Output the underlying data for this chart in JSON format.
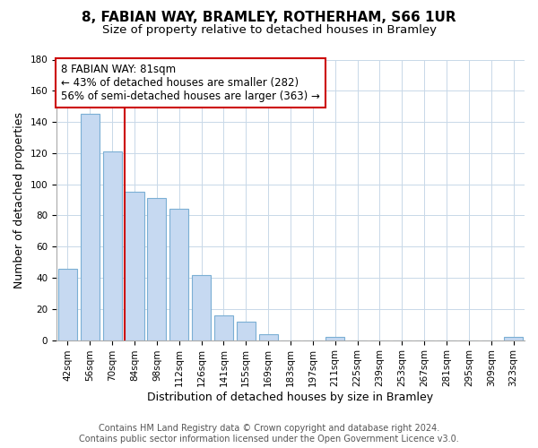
{
  "title": "8, FABIAN WAY, BRAMLEY, ROTHERHAM, S66 1UR",
  "subtitle": "Size of property relative to detached houses in Bramley",
  "xlabel": "Distribution of detached houses by size in Bramley",
  "ylabel": "Number of detached properties",
  "bar_labels": [
    "42sqm",
    "56sqm",
    "70sqm",
    "84sqm",
    "98sqm",
    "112sqm",
    "126sqm",
    "141sqm",
    "155sqm",
    "169sqm",
    "183sqm",
    "197sqm",
    "211sqm",
    "225sqm",
    "239sqm",
    "253sqm",
    "267sqm",
    "281sqm",
    "295sqm",
    "309sqm",
    "323sqm"
  ],
  "bar_values": [
    46,
    145,
    121,
    95,
    91,
    84,
    42,
    16,
    12,
    4,
    0,
    0,
    2,
    0,
    0,
    0,
    0,
    0,
    0,
    0,
    2
  ],
  "bar_color": "#c6d9f1",
  "bar_edge_color": "#7bafd4",
  "redline_x": 2.57,
  "annotation_title": "8 FABIAN WAY: 81sqm",
  "annotation_line1": "← 43% of detached houses are smaller (282)",
  "annotation_line2": "56% of semi-detached houses are larger (363) →",
  "annotation_box_color": "#ffffff",
  "annotation_box_edge": "#cc0000",
  "redline_color": "#cc0000",
  "ylim": [
    0,
    180
  ],
  "yticks": [
    0,
    20,
    40,
    60,
    80,
    100,
    120,
    140,
    160,
    180
  ],
  "footer_line1": "Contains HM Land Registry data © Crown copyright and database right 2024.",
  "footer_line2": "Contains public sector information licensed under the Open Government Licence v3.0.",
  "title_fontsize": 11,
  "subtitle_fontsize": 9.5,
  "axis_label_fontsize": 9,
  "tick_fontsize": 7.5,
  "annotation_fontsize": 8.5,
  "footer_fontsize": 7
}
